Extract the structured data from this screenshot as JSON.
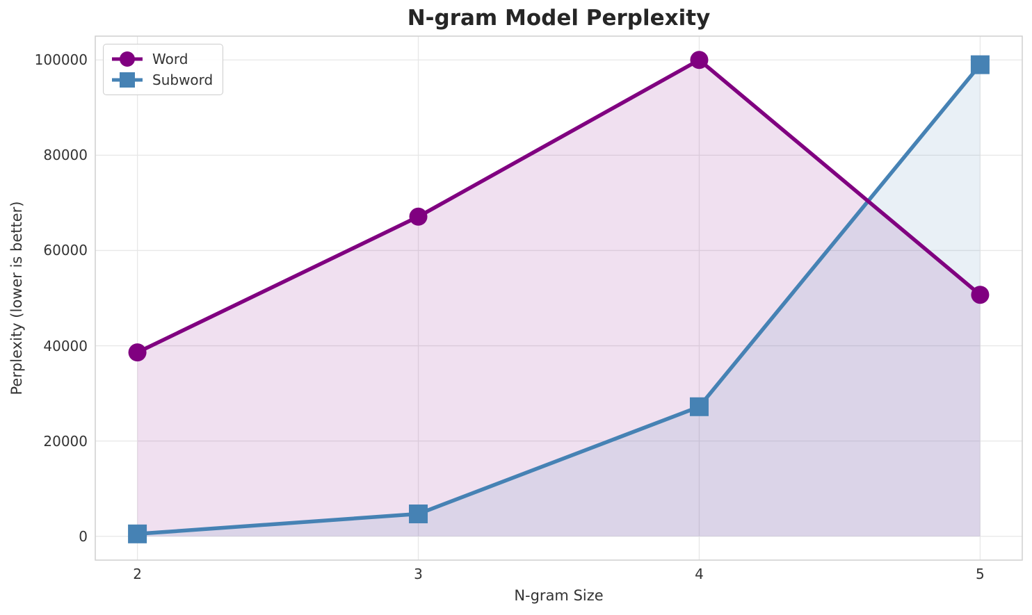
{
  "chart_data": {
    "type": "line",
    "title": "N-gram Model Perplexity",
    "xlabel": "N-gram Size",
    "ylabel": "Perplexity (lower is better)",
    "x": [
      2,
      3,
      4,
      5
    ],
    "x_tick_labels": [
      "2",
      "3",
      "4",
      "5"
    ],
    "y_ticks": [
      0,
      20000,
      40000,
      60000,
      80000,
      100000
    ],
    "y_tick_labels": [
      "0",
      "20000",
      "40000",
      "60000",
      "80000",
      "100000"
    ],
    "xlim": [
      1.85,
      5.15
    ],
    "ylim": [
      -5000,
      105000
    ],
    "grid": true,
    "legend_position": "upper left",
    "series": [
      {
        "name": "Word",
        "marker": "circle",
        "color": "#800080",
        "fill_to_zero": true,
        "fill_alpha": 0.12,
        "values": [
          38600,
          67100,
          100000,
          50700
        ]
      },
      {
        "name": "Subword",
        "marker": "square",
        "color": "#4682B4",
        "fill_to_zero": true,
        "fill_alpha": 0.12,
        "values": [
          500,
          4700,
          27200,
          99000
        ]
      }
    ]
  },
  "colors": {
    "grid": "#e7e7e7",
    "spine": "#cfcfcf",
    "title_text": "#262626",
    "text": "#333333",
    "background": "#ffffff"
  }
}
